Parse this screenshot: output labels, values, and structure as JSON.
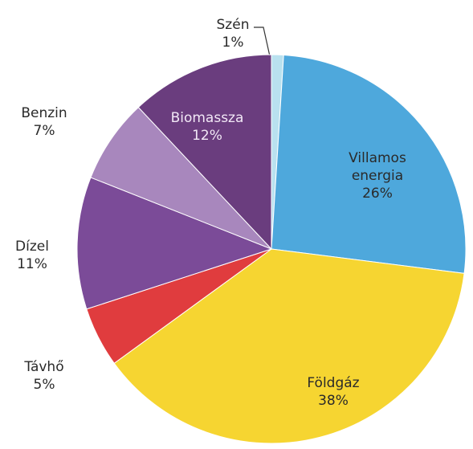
{
  "chart_data": {
    "type": "pie",
    "categories": [
      "Szén",
      "Villamos energia",
      "Földgáz",
      "Távhő",
      "Dízel",
      "Benzin",
      "Biomassza"
    ],
    "values": [
      1,
      26,
      38,
      5,
      11,
      7,
      12
    ],
    "value_labels": [
      "1%",
      "26%",
      "38%",
      "5%",
      "11%",
      "7%",
      "12%"
    ],
    "colors": [
      "#b9e1ef",
      "#4ea8dc",
      "#f6d531",
      "#e03c3e",
      "#7b4b98",
      "#a887bd",
      "#6a3d7e"
    ]
  }
}
